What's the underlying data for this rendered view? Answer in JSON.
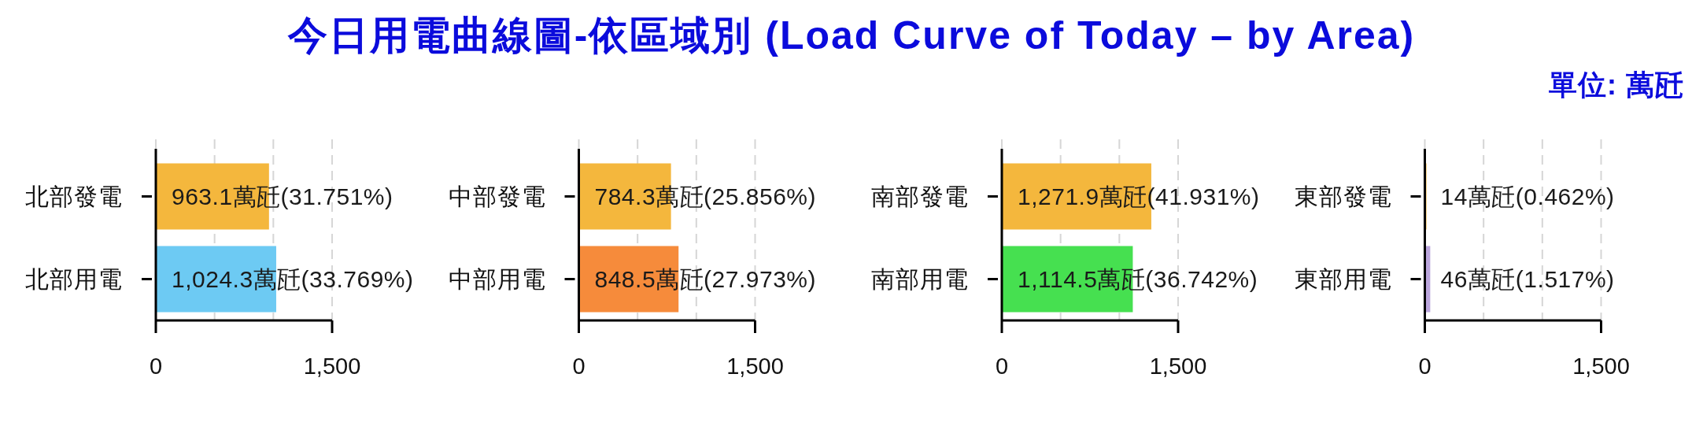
{
  "chart_data": [
    {
      "type": "other",
      "title": "今日用電曲線圖-依區域別 (Load Curve of Today – by Area)",
      "subtitle": "單位: 萬瓩"
    },
    {
      "type": "bar",
      "orientation": "horizontal",
      "categories": [
        "北部發電",
        "北部用電"
      ],
      "values": [
        963.1,
        1024.3
      ],
      "colors": [
        "#f4b73d",
        "#6dcaf3"
      ],
      "value_labels": [
        "963.1萬瓩(31.751%)",
        "1,024.3萬瓩(33.769%)"
      ],
      "xlim": [
        0,
        1500
      ],
      "xticks": [
        {
          "value": 0,
          "label": "0"
        },
        {
          "value": 500,
          "label": null
        },
        {
          "value": 1000,
          "label": null
        },
        {
          "value": 1500,
          "label": "1,500"
        }
      ],
      "grid": "x"
    },
    {
      "type": "bar",
      "orientation": "horizontal",
      "categories": [
        "中部發電",
        "中部用電"
      ],
      "values": [
        784.3,
        848.5
      ],
      "colors": [
        "#f4b73d",
        "#f68b3b"
      ],
      "value_labels": [
        "784.3萬瓩(25.856%)",
        "848.5萬瓩(27.973%)"
      ],
      "xlim": [
        0,
        1500
      ],
      "xticks": [
        {
          "value": 0,
          "label": "0"
        },
        {
          "value": 500,
          "label": null
        },
        {
          "value": 1000,
          "label": null
        },
        {
          "value": 1500,
          "label": "1,500"
        }
      ],
      "grid": "x"
    },
    {
      "type": "bar",
      "orientation": "horizontal",
      "categories": [
        "南部發電",
        "南部用電"
      ],
      "values": [
        1271.9,
        1114.5
      ],
      "colors": [
        "#f4b73d",
        "#46e050"
      ],
      "value_labels": [
        "1,271.9萬瓩(41.931%)",
        "1,114.5萬瓩(36.742%)"
      ],
      "xlim": [
        0,
        1500
      ],
      "xticks": [
        {
          "value": 0,
          "label": "0"
        },
        {
          "value": 500,
          "label": null
        },
        {
          "value": 1000,
          "label": null
        },
        {
          "value": 1500,
          "label": "1,500"
        }
      ],
      "grid": "x"
    },
    {
      "type": "bar",
      "orientation": "horizontal",
      "categories": [
        "東部發電",
        "東部用電"
      ],
      "values": [
        14,
        46
      ],
      "colors": [
        "#f4b73d",
        "#bba6dd"
      ],
      "value_labels": [
        "14萬瓩(0.462%)",
        "46萬瓩(1.517%)"
      ],
      "xlim": [
        0,
        1500
      ],
      "xticks": [
        {
          "value": 0,
          "label": "0"
        },
        {
          "value": 500,
          "label": null
        },
        {
          "value": 1000,
          "label": null
        },
        {
          "value": 1500,
          "label": "1,500"
        }
      ],
      "grid": "x"
    }
  ]
}
